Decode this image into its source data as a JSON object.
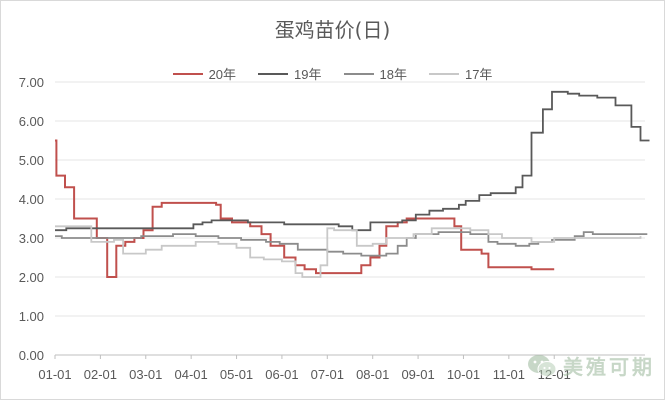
{
  "chart_data": {
    "type": "line",
    "title": "蛋鸡苗价(日)",
    "xlabel": "",
    "ylabel": "",
    "ylim": [
      0,
      7
    ],
    "yticks": [
      "0.00",
      "1.00",
      "2.00",
      "3.00",
      "4.00",
      "5.00",
      "6.00",
      "7.00"
    ],
    "xticks": [
      "01-01",
      "02-01",
      "03-01",
      "04-01",
      "05-01",
      "06-01",
      "07-01",
      "08-01",
      "09-01",
      "10-01",
      "11-01",
      "12-01"
    ],
    "grid": true,
    "legend_position": "top",
    "x_unit": "month offset from 01-01",
    "series": [
      {
        "name": "20年",
        "color": "#c0504d",
        "points": [
          [
            0,
            5.5
          ],
          [
            0.03,
            4.6
          ],
          [
            0.22,
            4.3
          ],
          [
            0.42,
            3.5
          ],
          [
            0.92,
            3.0
          ],
          [
            1.15,
            2.0
          ],
          [
            1.35,
            2.8
          ],
          [
            1.55,
            2.9
          ],
          [
            1.75,
            3.0
          ],
          [
            1.95,
            3.2
          ],
          [
            2.15,
            3.8
          ],
          [
            2.35,
            3.9
          ],
          [
            3.0,
            3.9
          ],
          [
            3.55,
            3.85
          ],
          [
            3.65,
            3.5
          ],
          [
            3.9,
            3.4
          ],
          [
            4.3,
            3.3
          ],
          [
            4.55,
            3.1
          ],
          [
            4.75,
            2.8
          ],
          [
            5.05,
            2.5
          ],
          [
            5.3,
            2.3
          ],
          [
            5.5,
            2.2
          ],
          [
            5.75,
            2.1
          ],
          [
            6.5,
            2.1
          ],
          [
            6.75,
            2.3
          ],
          [
            6.95,
            2.5
          ],
          [
            7.15,
            2.8
          ],
          [
            7.3,
            3.3
          ],
          [
            7.55,
            3.4
          ],
          [
            7.75,
            3.5
          ],
          [
            8.65,
            3.5
          ],
          [
            8.8,
            3.3
          ],
          [
            8.95,
            2.7
          ],
          [
            9.4,
            2.6
          ],
          [
            9.55,
            2.25
          ],
          [
            10.2,
            2.25
          ],
          [
            10.5,
            2.2
          ],
          [
            11.0,
            2.2
          ]
        ]
      },
      {
        "name": "19年",
        "color": "#595959",
        "points": [
          [
            0,
            3.2
          ],
          [
            0.25,
            3.25
          ],
          [
            2.6,
            3.25
          ],
          [
            3.05,
            3.35
          ],
          [
            3.25,
            3.4
          ],
          [
            3.45,
            3.45
          ],
          [
            4.25,
            3.4
          ],
          [
            5.05,
            3.35
          ],
          [
            5.55,
            3.35
          ],
          [
            6.25,
            3.3
          ],
          [
            6.55,
            3.2
          ],
          [
            6.95,
            3.4
          ],
          [
            7.65,
            3.45
          ],
          [
            7.95,
            3.6
          ],
          [
            8.25,
            3.7
          ],
          [
            8.55,
            3.75
          ],
          [
            8.9,
            3.85
          ],
          [
            9.05,
            3.95
          ],
          [
            9.35,
            4.1
          ],
          [
            9.6,
            4.15
          ],
          [
            10.15,
            4.3
          ],
          [
            10.3,
            4.6
          ],
          [
            10.5,
            5.7
          ],
          [
            10.75,
            6.3
          ],
          [
            10.95,
            6.75
          ],
          [
            11.15,
            6.75
          ],
          [
            11.3,
            6.7
          ],
          [
            11.55,
            6.65
          ],
          [
            11.95,
            6.6
          ],
          [
            12.35,
            6.4
          ],
          [
            12.7,
            5.85
          ],
          [
            12.9,
            5.5
          ],
          [
            13.1,
            5.5
          ]
        ]
      },
      {
        "name": "18年",
        "color": "#8c8c8c",
        "points": [
          [
            0,
            3.05
          ],
          [
            0.15,
            3.0
          ],
          [
            1.65,
            3.0
          ],
          [
            1.9,
            3.05
          ],
          [
            2.6,
            3.1
          ],
          [
            3.1,
            3.05
          ],
          [
            3.6,
            3.0
          ],
          [
            4.1,
            2.95
          ],
          [
            4.65,
            2.9
          ],
          [
            4.95,
            2.85
          ],
          [
            5.35,
            2.7
          ],
          [
            6.0,
            2.65
          ],
          [
            6.35,
            2.6
          ],
          [
            6.75,
            2.55
          ],
          [
            7.05,
            2.55
          ],
          [
            7.3,
            2.6
          ],
          [
            7.55,
            2.8
          ],
          [
            7.75,
            3.0
          ],
          [
            7.95,
            3.1
          ],
          [
            8.45,
            3.15
          ],
          [
            9.15,
            3.1
          ],
          [
            9.55,
            2.9
          ],
          [
            9.75,
            2.85
          ],
          [
            10.15,
            2.8
          ],
          [
            10.45,
            2.85
          ],
          [
            10.65,
            2.9
          ],
          [
            10.95,
            2.95
          ],
          [
            11.45,
            3.05
          ],
          [
            11.65,
            3.15
          ],
          [
            11.85,
            3.1
          ],
          [
            12.55,
            3.1
          ],
          [
            12.9,
            3.1
          ],
          [
            13.05,
            3.1
          ]
        ]
      },
      {
        "name": "17年",
        "color": "#c8c8c8",
        "points": [
          [
            0,
            3.3
          ],
          [
            0.2,
            3.3
          ],
          [
            0.7,
            3.3
          ],
          [
            0.8,
            2.9
          ],
          [
            1.3,
            2.95
          ],
          [
            1.5,
            2.6
          ],
          [
            2.0,
            2.7
          ],
          [
            2.35,
            2.8
          ],
          [
            2.75,
            2.8
          ],
          [
            3.1,
            2.9
          ],
          [
            3.6,
            2.85
          ],
          [
            4.0,
            2.75
          ],
          [
            4.3,
            2.5
          ],
          [
            4.6,
            2.45
          ],
          [
            5.0,
            2.4
          ],
          [
            5.3,
            2.1
          ],
          [
            5.45,
            2.0
          ],
          [
            5.6,
            2.0
          ],
          [
            5.85,
            2.3
          ],
          [
            6.0,
            3.25
          ],
          [
            6.15,
            3.2
          ],
          [
            6.5,
            3.2
          ],
          [
            6.65,
            2.8
          ],
          [
            7.0,
            2.85
          ],
          [
            7.3,
            3.0
          ],
          [
            7.9,
            3.1
          ],
          [
            8.3,
            3.25
          ],
          [
            9.15,
            3.2
          ],
          [
            9.55,
            3.1
          ],
          [
            9.85,
            3.0
          ],
          [
            10.5,
            2.9
          ],
          [
            11.0,
            3.0
          ],
          [
            11.55,
            3.0
          ],
          [
            12.2,
            3.0
          ],
          [
            12.9,
            3.05
          ]
        ]
      }
    ]
  },
  "watermark": {
    "text": "美殖可期",
    "icon": "wechat-icon"
  }
}
